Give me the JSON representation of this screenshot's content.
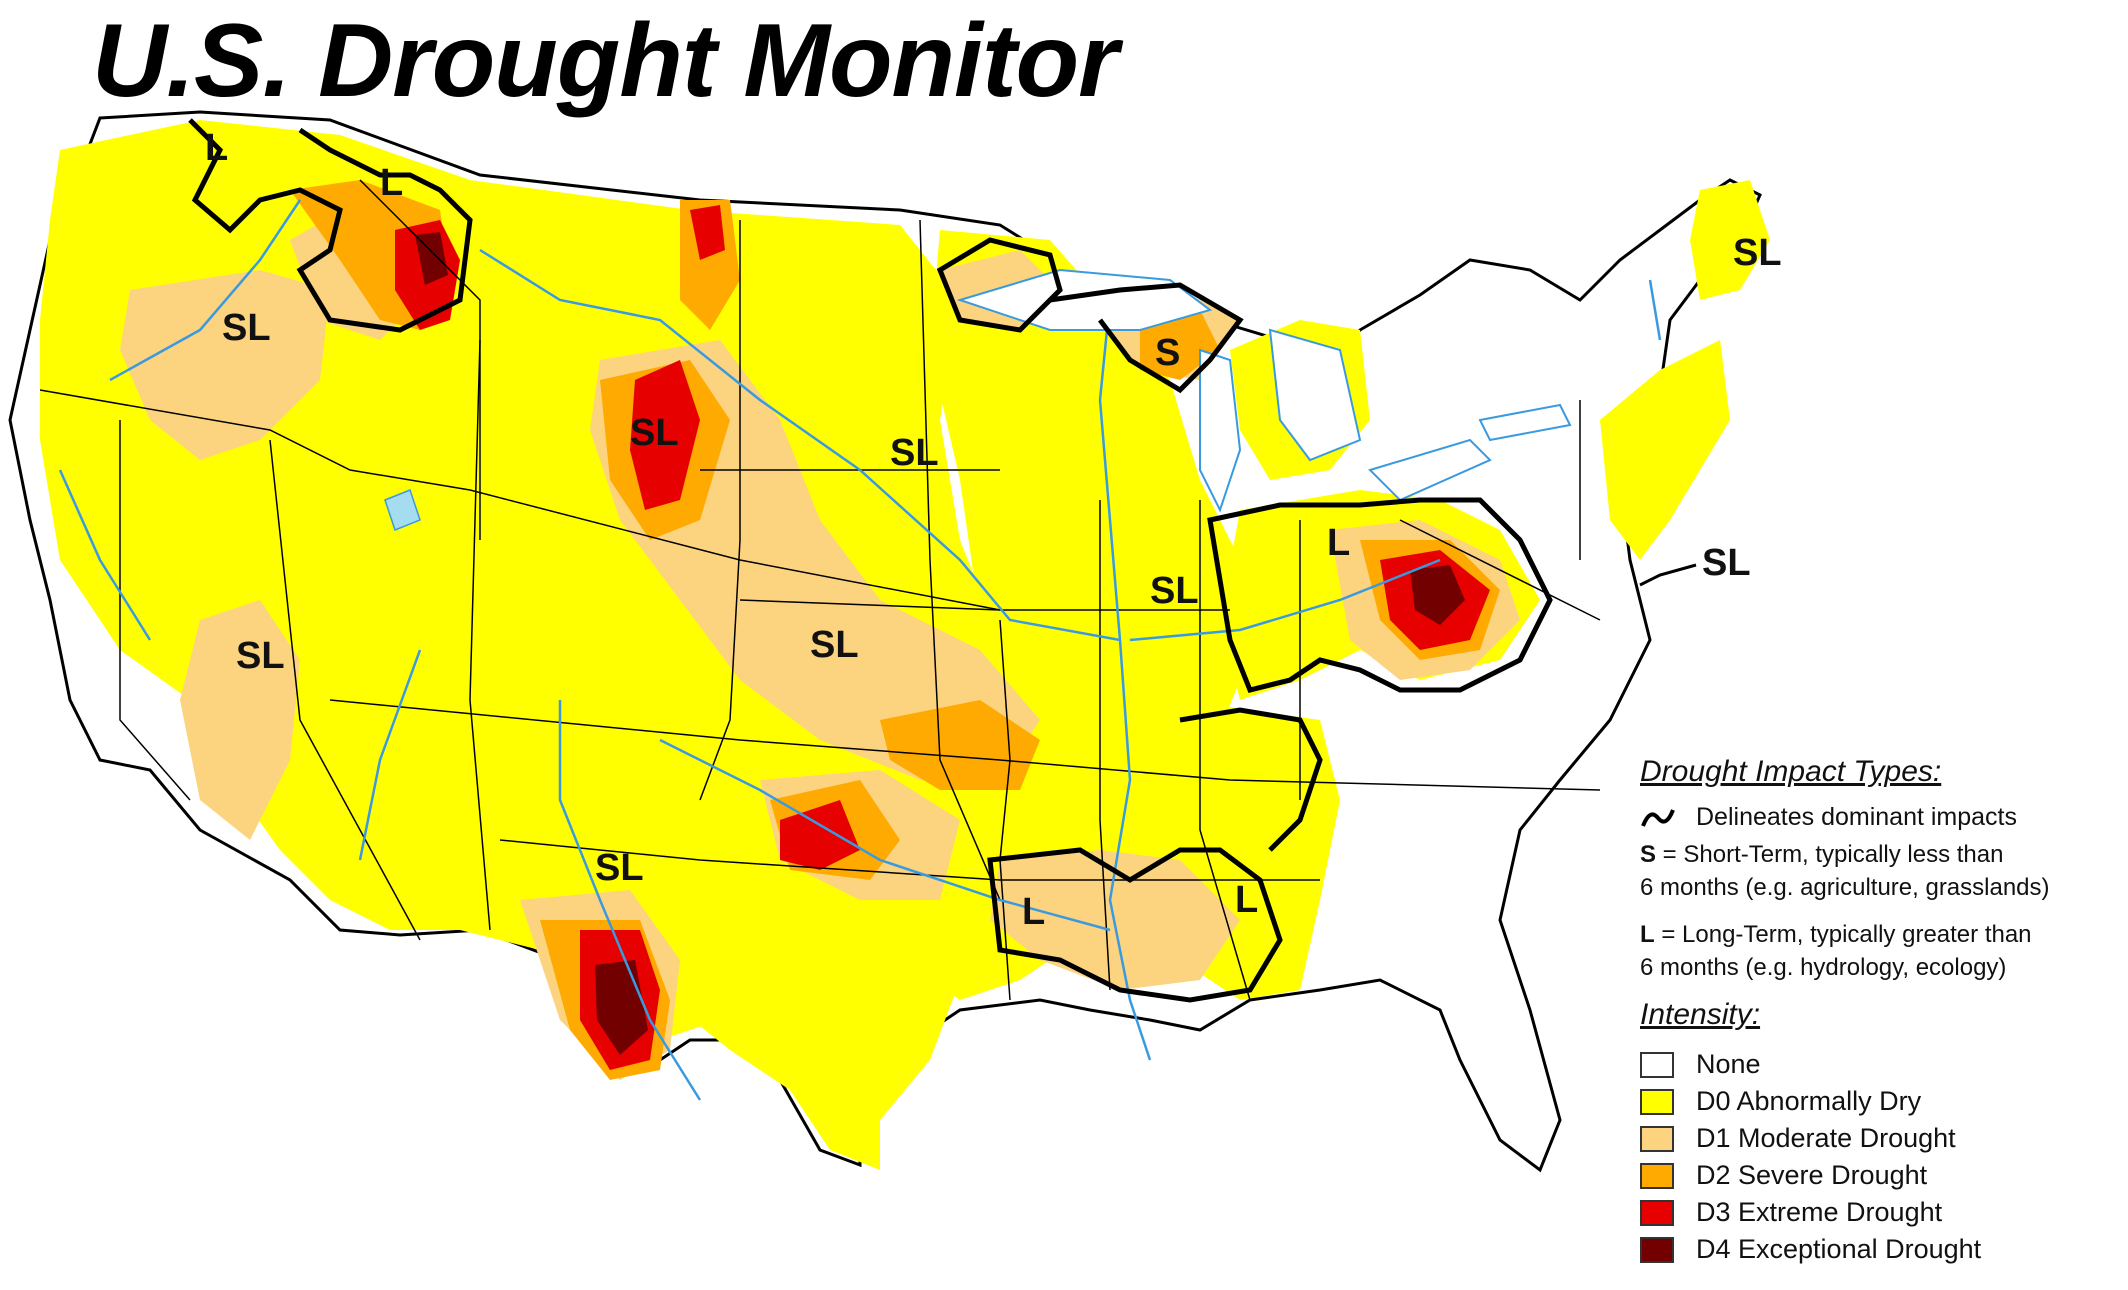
{
  "title": "U.S. Drought Monitor",
  "impact_labels": [
    "L",
    "L",
    "SL",
    "SL",
    "SL",
    "S",
    "SL",
    "L",
    "SL",
    "SL",
    "SL",
    "SL",
    "L",
    "L",
    "SL"
  ],
  "legend": {
    "impact_heading": "Drought Impact Types:",
    "delineates": "Delineates dominant impacts",
    "short_term_code": "S",
    "short_term_line1": " = Short-Term, typically less than",
    "short_term_line2": "6 months (e.g. agriculture, grasslands)",
    "long_term_code": "L",
    "long_term_line1": " = Long-Term, typically greater than",
    "long_term_line2": "6 months (e.g. hydrology, ecology)",
    "intensity_heading": "Intensity:",
    "levels": [
      {
        "label": "None",
        "color": "#ffffff"
      },
      {
        "label": "D0 Abnormally Dry",
        "color": "#ffff00"
      },
      {
        "label": "D1 Moderate Drought",
        "color": "#fcd37f"
      },
      {
        "label": "D2 Severe Drought",
        "color": "#ffaa00"
      },
      {
        "label": "D3 Extreme Drought",
        "color": "#e60000"
      },
      {
        "label": "D4 Exceptional Drought",
        "color": "#730000"
      }
    ]
  },
  "colors": {
    "none": "#ffffff",
    "d0": "#ffff00",
    "d1": "#fcd37f",
    "d2": "#ffaa00",
    "d3": "#e60000",
    "d4": "#730000",
    "water": "#3a9ae0",
    "border": "#000000"
  }
}
